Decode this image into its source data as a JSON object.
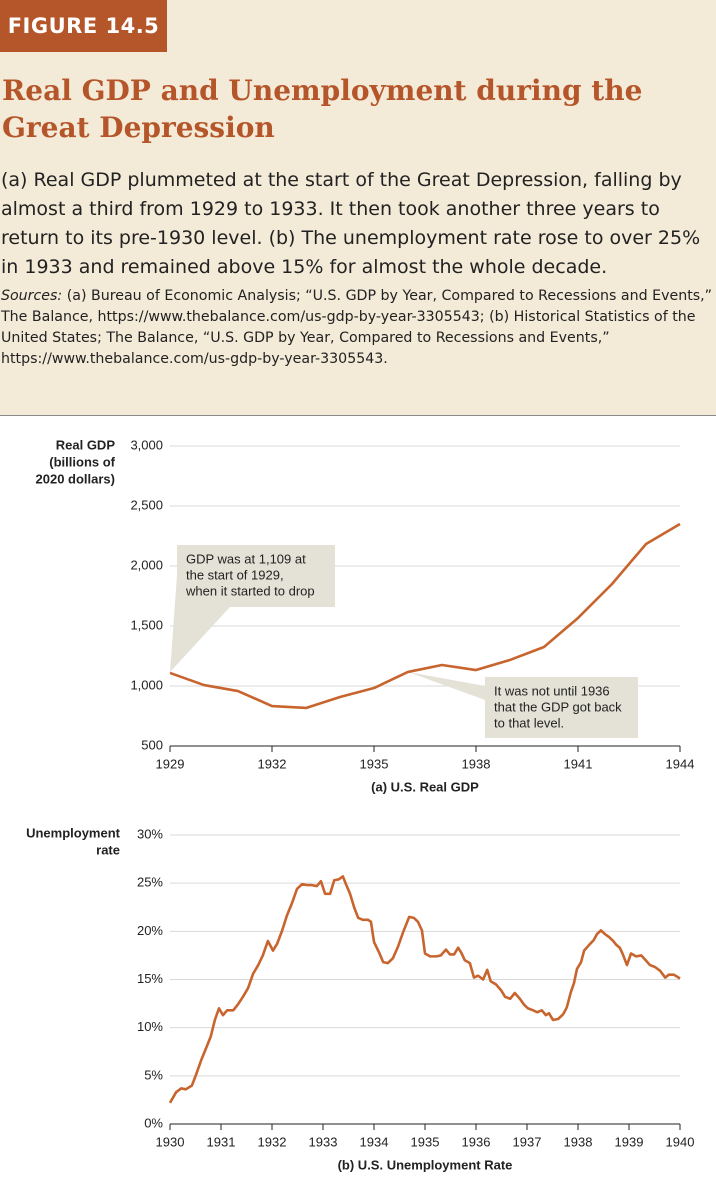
{
  "figure_label": "FIGURE 14.5",
  "title": "Real GDP and Unemployment during the Great Depression",
  "caption": "(a) Real GDP plummeted at the start of the Great Depression, falling by almost a third from 1929 to 1933. It then took another three years to return to its pre-1930 level. (b) The unemployment rate rose to over 25% in 1933 and remained above 15% for almost the whole decade.",
  "sources_label": "Sources:",
  "sources": "(a) Bureau of Economic Analysis; “U.S. GDP by Year, Compared to Recessions and Events,” The Balance, https://www.thebalance.com/us-gdp-by-year-3305543; (b) Historical Statistics of the United States; The Balance, “U.S. GDP by Year, Compared to Recessions and Events,” https://www.thebalance.com/us-gdp-by-year-3305543.",
  "chart_data": [
    {
      "type": "line",
      "title": "(a) U.S. Real GDP",
      "ylabel": [
        "Real GDP",
        "(billions of",
        "2020 dollars)"
      ],
      "x": [
        1929,
        1930,
        1931,
        1932,
        1933,
        1934,
        1935,
        1936,
        1937,
        1938,
        1939,
        1940,
        1941,
        1942,
        1943,
        1944
      ],
      "values": [
        1109,
        1008,
        958,
        833,
        817,
        908,
        983,
        1117,
        1175,
        1133,
        1217,
        1325,
        1567,
        1850,
        2183,
        2350
      ],
      "color": "#c8642d",
      "xlim": [
        1929,
        1944
      ],
      "xticks": [
        1929,
        1932,
        1935,
        1938,
        1941,
        1944
      ],
      "ylim": [
        500,
        3000
      ],
      "yticks": [
        500,
        {
          "value": 1000,
          "label": "1,000"
        },
        {
          "value": 1500,
          "label": "1,500"
        },
        {
          "value": 2000,
          "label": "2,000"
        },
        {
          "value": 2500,
          "label": "2,500"
        },
        {
          "value": 3000,
          "label": "3,000"
        }
      ],
      "grid": true,
      "annotations": [
        [
          "GDP was at 1,109 at",
          "the start of 1929,",
          "when it started to drop"
        ],
        [
          "It was not until 1936",
          "that the GDP got back",
          "to that level."
        ]
      ]
    },
    {
      "type": "line",
      "title": "(b) U.S. Unemployment Rate",
      "ylabel": [
        "Unemployment",
        "rate"
      ],
      "x": [
        1930.0,
        1930.12,
        1930.22,
        1930.31,
        1930.43,
        1930.51,
        1930.61,
        1930.71,
        1930.8,
        1930.88,
        1930.96,
        1931.04,
        1931.12,
        1931.24,
        1931.33,
        1931.43,
        1931.53,
        1931.63,
        1931.73,
        1931.82,
        1931.92,
        1932.02,
        1932.1,
        1932.2,
        1932.29,
        1932.39,
        1932.49,
        1932.59,
        1932.69,
        1932.78,
        1932.88,
        1932.96,
        1933.04,
        1933.14,
        1933.22,
        1933.31,
        1933.39,
        1933.45,
        1933.53,
        1933.61,
        1933.69,
        1933.78,
        1933.88,
        1933.94,
        1934.0,
        1934.1,
        1934.18,
        1934.27,
        1934.37,
        1934.47,
        1934.57,
        1934.69,
        1934.78,
        1934.86,
        1934.94,
        1935.0,
        1935.1,
        1935.22,
        1935.31,
        1935.41,
        1935.49,
        1935.57,
        1935.65,
        1935.71,
        1935.78,
        1935.88,
        1935.96,
        1936.04,
        1936.14,
        1936.22,
        1936.29,
        1936.39,
        1936.49,
        1936.57,
        1936.67,
        1936.76,
        1936.86,
        1936.94,
        1937.02,
        1937.12,
        1937.2,
        1937.29,
        1937.37,
        1937.43,
        1937.51,
        1937.61,
        1937.71,
        1937.78,
        1937.86,
        1937.92,
        1937.98,
        1938.06,
        1938.12,
        1938.22,
        1938.31,
        1938.37,
        1938.45,
        1938.53,
        1938.61,
        1938.69,
        1938.75,
        1938.82,
        1938.88,
        1938.96,
        1939.04,
        1939.14,
        1939.24,
        1939.31,
        1939.41,
        1939.51,
        1939.61,
        1939.71,
        1939.78,
        1939.88,
        1940.0
      ],
      "values": [
        2.2,
        3.3,
        3.7,
        3.6,
        4.0,
        5.1,
        6.6,
        7.9,
        9.1,
        10.8,
        12.0,
        11.3,
        11.8,
        11.8,
        12.4,
        13.2,
        14.1,
        15.6,
        16.5,
        17.5,
        19.0,
        18.0,
        18.7,
        20.1,
        21.6,
        22.9,
        24.4,
        24.9,
        24.8,
        24.8,
        24.7,
        25.2,
        23.9,
        23.9,
        25.3,
        25.4,
        25.7,
        24.9,
        23.9,
        22.5,
        21.4,
        21.2,
        21.2,
        21.0,
        18.9,
        17.8,
        16.8,
        16.7,
        17.2,
        18.4,
        19.9,
        21.5,
        21.4,
        21.0,
        20.1,
        17.7,
        17.4,
        17.4,
        17.5,
        18.1,
        17.6,
        17.6,
        18.3,
        17.8,
        17.0,
        16.7,
        15.2,
        15.4,
        15.0,
        16.0,
        14.8,
        14.5,
        13.9,
        13.2,
        13.0,
        13.6,
        13.0,
        12.4,
        12.0,
        11.8,
        11.6,
        11.8,
        11.3,
        11.5,
        10.8,
        10.9,
        11.4,
        12.1,
        13.7,
        14.6,
        16.1,
        16.8,
        18.0,
        18.6,
        19.1,
        19.7,
        20.1,
        19.7,
        19.4,
        19.0,
        18.6,
        18.3,
        17.6,
        16.5,
        17.7,
        17.4,
        17.5,
        17.1,
        16.5,
        16.3,
        15.9,
        15.2,
        15.5,
        15.5,
        15.1
      ],
      "color": "#c8642d",
      "xlim": [
        1930,
        1940
      ],
      "xticks": [
        1930,
        1931,
        1932,
        1933,
        1934,
        1935,
        1936,
        1937,
        1938,
        1939,
        1940
      ],
      "ylim": [
        0,
        30
      ],
      "yticks": [
        {
          "value": 0,
          "label": "0%"
        },
        {
          "value": 5,
          "label": "5%"
        },
        {
          "value": 10,
          "label": "10%"
        },
        {
          "value": 15,
          "label": "15%"
        },
        {
          "value": 20,
          "label": "20%"
        },
        {
          "value": 25,
          "label": "25%"
        },
        {
          "value": 30,
          "label": "30%"
        }
      ],
      "grid": true
    }
  ]
}
